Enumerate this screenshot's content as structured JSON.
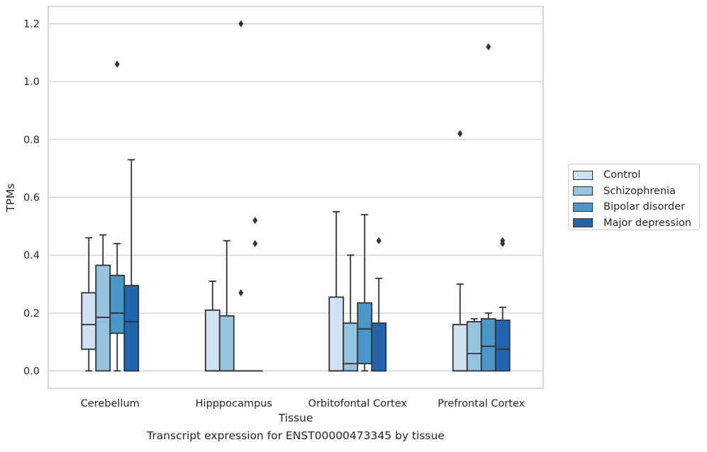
{
  "caption": "Transcript expression for ENST00000473345 by tissue",
  "chart_data": {
    "type": "box",
    "xlabel": "Tissue",
    "ylabel": "TPMs",
    "ylim": [
      -0.06,
      1.26
    ],
    "yticks": [
      "0.0",
      "0.2",
      "0.4",
      "0.6",
      "0.8",
      "1.0",
      "1.2"
    ],
    "ytick_values": [
      0.0,
      0.2,
      0.4,
      0.6,
      0.8,
      1.0,
      1.2
    ],
    "grid": "horizontal",
    "legend_position": "right",
    "categories": [
      "Cerebellum",
      "Hipppocampus",
      "Orbitofontal Cortex",
      "Prefrontal Cortex"
    ],
    "series": [
      {
        "name": "Control",
        "color": "#d0e1f2",
        "boxes": [
          {
            "min": 0.0,
            "q1": 0.075,
            "median": 0.16,
            "q3": 0.27,
            "max": 0.46,
            "outliers": []
          },
          {
            "min": 0.0,
            "q1": 0.0,
            "median": 0.0,
            "q3": 0.21,
            "max": 0.31,
            "outliers": []
          },
          {
            "min": 0.0,
            "q1": 0.0,
            "median": 0.0,
            "q3": 0.255,
            "max": 0.55,
            "outliers": []
          },
          {
            "min": 0.0,
            "q1": 0.0,
            "median": 0.0,
            "q3": 0.16,
            "max": 0.3,
            "outliers": [
              0.82
            ]
          }
        ]
      },
      {
        "name": "Schizophrenia",
        "color": "#94c4df",
        "boxes": [
          {
            "min": 0.0,
            "q1": 0.0,
            "median": 0.185,
            "q3": 0.365,
            "max": 0.47,
            "outliers": []
          },
          {
            "min": 0.0,
            "q1": 0.0,
            "median": 0.0,
            "q3": 0.19,
            "max": 0.45,
            "outliers": []
          },
          {
            "min": 0.0,
            "q1": 0.0,
            "median": 0.025,
            "q3": 0.165,
            "max": 0.4,
            "outliers": []
          },
          {
            "min": 0.0,
            "q1": 0.0,
            "median": 0.06,
            "q3": 0.17,
            "max": 0.18,
            "outliers": []
          }
        ]
      },
      {
        "name": "Bipolar disorder",
        "color": "#4a98c9",
        "boxes": [
          {
            "min": 0.0,
            "q1": 0.13,
            "median": 0.2,
            "q3": 0.33,
            "max": 0.44,
            "outliers": [
              1.06
            ]
          },
          {
            "min": 0.0,
            "q1": 0.0,
            "median": 0.0,
            "q3": 0.0,
            "max": 0.0,
            "outliers": [
              1.2,
              0.27
            ]
          },
          {
            "min": 0.0,
            "q1": 0.025,
            "median": 0.145,
            "q3": 0.235,
            "max": 0.54,
            "outliers": []
          },
          {
            "min": 0.0,
            "q1": 0.0,
            "median": 0.085,
            "q3": 0.18,
            "max": 0.2,
            "outliers": [
              1.12
            ]
          }
        ]
      },
      {
        "name": "Major depression",
        "color": "#2166ac",
        "boxes": [
          {
            "min": 0.0,
            "q1": 0.0,
            "median": 0.17,
            "q3": 0.295,
            "max": 0.73,
            "outliers": []
          },
          {
            "min": 0.0,
            "q1": 0.0,
            "median": 0.0,
            "q3": 0.0,
            "max": 0.0,
            "outliers": [
              0.52,
              0.44
            ]
          },
          {
            "min": 0.0,
            "q1": 0.0,
            "median": 0.0,
            "q3": 0.165,
            "max": 0.32,
            "outliers": [
              0.45
            ]
          },
          {
            "min": 0.0,
            "q1": 0.0,
            "median": 0.075,
            "q3": 0.175,
            "max": 0.22,
            "outliers": [
              0.45,
              0.44
            ]
          }
        ]
      }
    ]
  }
}
